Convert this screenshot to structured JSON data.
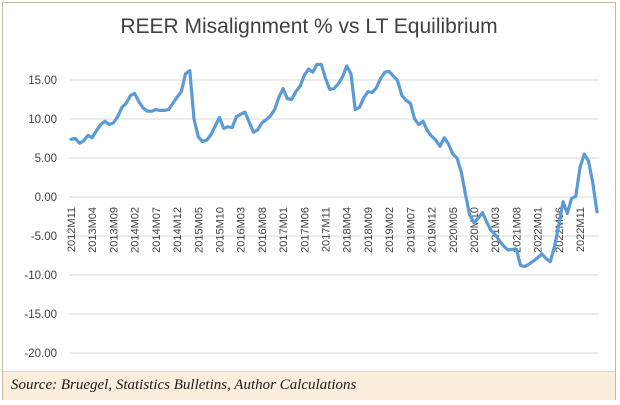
{
  "title": "REER Misalignment % vs LT Equilibrium",
  "source": "Source: Bruegel, Statistics Bulletins, Author Calculations",
  "colors": {
    "line": "#5b9bd5",
    "grid": "#d9d9d9",
    "tick_text": "#404040",
    "footer_bg": "#fbeedd"
  },
  "chart_data": {
    "type": "line",
    "title": "REER Misalignment % vs LT Equilibrium",
    "xlabel": "",
    "ylabel": "",
    "ylim": [
      -20,
      20
    ],
    "yticks": [
      15,
      10,
      5,
      0,
      -5,
      -10,
      -15,
      -20
    ],
    "ytick_labels": [
      "15.00",
      "10.00",
      "5.00",
      "0.00",
      "-5.00",
      "-10.00",
      "-15.00",
      "-20.00"
    ],
    "grid": true,
    "legend": "none",
    "x_start": "2012M11",
    "x_labels": [
      "2012M11",
      "2013M04",
      "2013M09",
      "2014M02",
      "2014M07",
      "2014M12",
      "2015M05",
      "2015M10",
      "2016M03",
      "2016M08",
      "2017M01",
      "2017M06",
      "2017M11",
      "2018M04",
      "2018M09",
      "2019M02",
      "2019M07",
      "2019M12",
      "2020M05",
      "2020M10",
      "2021M03",
      "2021M08",
      "2022M01",
      "2022M06",
      "2022M11"
    ],
    "series": [
      {
        "values": [
          7.4,
          7.5,
          6.9,
          7.2,
          7.9,
          7.6,
          8.5,
          9.3,
          9.7,
          9.3,
          9.5,
          10.3,
          11.5,
          12.0,
          13.0,
          13.3,
          12.2,
          11.4,
          11.0,
          11.0,
          11.2,
          11.1,
          11.1,
          11.2,
          12.0,
          12.8,
          13.5,
          15.8,
          16.2,
          10.0,
          7.7,
          7.1,
          7.3,
          8.0,
          9.1,
          10.2,
          8.8,
          9.0,
          8.9,
          10.3,
          10.6,
          10.9,
          9.6,
          8.3,
          8.6,
          9.5,
          9.9,
          10.4,
          11.2,
          12.8,
          13.9,
          12.6,
          12.5,
          13.5,
          14.2,
          15.6,
          16.4,
          16.0,
          17.0,
          17.0,
          15.2,
          13.8,
          13.9,
          14.5,
          15.4,
          16.8,
          15.8,
          11.2,
          11.5,
          12.7,
          13.5,
          13.4,
          14.0,
          15.2,
          16.0,
          16.1,
          15.5,
          14.9,
          13.0,
          12.4,
          12.0,
          10.0,
          9.3,
          9.7,
          8.5,
          7.8,
          7.3,
          6.5,
          7.6,
          6.8,
          5.5,
          5.0,
          3.2,
          0.3,
          -2.3,
          -3.3,
          -2.7,
          -2.0,
          -3.2,
          -4.3,
          -4.8,
          -5.6,
          -6.3,
          -6.8,
          -6.7,
          -6.7,
          -8.8,
          -8.9,
          -8.6,
          -8.2,
          -7.8,
          -7.3,
          -7.9,
          -8.3,
          -6.3,
          -3.6,
          -0.6,
          -2.1,
          -0.2,
          0.1,
          3.8,
          5.5,
          4.6,
          1.8,
          -1.9
        ]
      }
    ]
  }
}
